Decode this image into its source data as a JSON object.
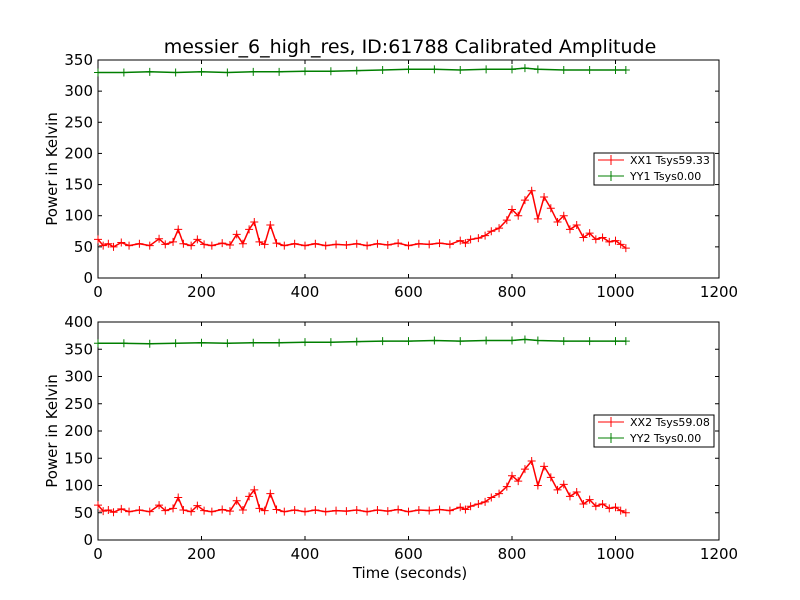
{
  "chart_data": [
    {
      "type": "line",
      "title": "messier_6_high_res, ID:61788 Calibrated Amplitude",
      "xlabel": "",
      "ylabel": "Power in Kelvin",
      "xlim": [
        0,
        1200
      ],
      "ylim": [
        0,
        350
      ],
      "xticks": [
        0,
        200,
        400,
        600,
        800,
        1000,
        1200
      ],
      "yticks": [
        0,
        50,
        100,
        150,
        200,
        250,
        300,
        350
      ],
      "legend_position": "center-right",
      "marker": "plus",
      "series": [
        {
          "name": "XX1 Tsys59.33",
          "color": "#ff0000",
          "x": [
            0,
            10,
            20,
            30,
            45,
            60,
            80,
            100,
            118,
            130,
            145,
            155,
            165,
            180,
            192,
            205,
            220,
            240,
            255,
            268,
            280,
            292,
            302,
            312,
            322,
            333,
            345,
            360,
            380,
            400,
            420,
            440,
            460,
            480,
            500,
            520,
            540,
            560,
            580,
            600,
            620,
            640,
            660,
            680,
            700,
            710,
            720,
            735,
            748,
            760,
            775,
            790,
            800,
            812,
            825,
            838,
            850,
            862,
            875,
            888,
            900,
            912,
            925,
            938,
            950,
            962,
            975,
            988,
            1000,
            1010,
            1020
          ],
          "y": [
            62,
            52,
            55,
            50,
            57,
            52,
            55,
            52,
            63,
            54,
            58,
            78,
            55,
            52,
            62,
            54,
            52,
            56,
            53,
            70,
            55,
            78,
            90,
            58,
            54,
            85,
            56,
            52,
            55,
            52,
            55,
            52,
            54,
            53,
            55,
            52,
            55,
            53,
            56,
            52,
            55,
            54,
            56,
            54,
            60,
            56,
            62,
            64,
            68,
            75,
            80,
            93,
            110,
            100,
            125,
            140,
            95,
            130,
            112,
            90,
            100,
            78,
            85,
            65,
            72,
            62,
            65,
            58,
            60,
            54,
            48
          ]
        },
        {
          "name": "YY1 Tsys0.00",
          "color": "#007f00",
          "x": [
            0,
            50,
            100,
            150,
            200,
            250,
            300,
            350,
            400,
            450,
            500,
            550,
            600,
            650,
            700,
            750,
            800,
            825,
            850,
            900,
            950,
            1000,
            1020
          ],
          "y": [
            330,
            330,
            331,
            330,
            331,
            330,
            331,
            331,
            332,
            332,
            333,
            334,
            335,
            335,
            334,
            335,
            335,
            337,
            335,
            334,
            334,
            334,
            334
          ]
        }
      ]
    },
    {
      "type": "line",
      "title": "",
      "xlabel": "Time (seconds)",
      "ylabel": "Power in Kelvin",
      "xlim": [
        0,
        1200
      ],
      "ylim": [
        0,
        400
      ],
      "xticks": [
        0,
        200,
        400,
        600,
        800,
        1000,
        1200
      ],
      "yticks": [
        0,
        50,
        100,
        150,
        200,
        250,
        300,
        350,
        400
      ],
      "legend_position": "center-right",
      "marker": "plus",
      "series": [
        {
          "name": "XX2 Tsys59.08",
          "color": "#ff0000",
          "x": [
            0,
            10,
            20,
            30,
            45,
            60,
            80,
            100,
            118,
            130,
            145,
            155,
            165,
            180,
            192,
            205,
            220,
            240,
            255,
            268,
            280,
            292,
            302,
            312,
            322,
            333,
            345,
            360,
            380,
            400,
            420,
            440,
            460,
            480,
            500,
            520,
            540,
            560,
            580,
            600,
            620,
            640,
            660,
            680,
            700,
            710,
            720,
            735,
            748,
            760,
            775,
            790,
            800,
            812,
            825,
            838,
            850,
            862,
            875,
            888,
            900,
            912,
            925,
            938,
            950,
            962,
            975,
            988,
            1000,
            1010,
            1020
          ],
          "y": [
            64,
            53,
            55,
            51,
            57,
            52,
            55,
            52,
            64,
            54,
            58,
            78,
            55,
            52,
            63,
            54,
            52,
            56,
            53,
            72,
            55,
            80,
            92,
            58,
            54,
            85,
            56,
            52,
            55,
            52,
            55,
            52,
            54,
            53,
            55,
            52,
            55,
            53,
            56,
            52,
            55,
            54,
            56,
            54,
            60,
            56,
            62,
            66,
            70,
            78,
            85,
            98,
            118,
            108,
            130,
            145,
            100,
            135,
            115,
            92,
            102,
            80,
            88,
            66,
            74,
            62,
            66,
            58,
            60,
            54,
            50
          ]
        },
        {
          "name": "YY2 Tsys0.00",
          "color": "#007f00",
          "x": [
            0,
            50,
            100,
            150,
            200,
            250,
            300,
            350,
            400,
            450,
            500,
            550,
            600,
            650,
            700,
            750,
            800,
            825,
            850,
            900,
            950,
            1000,
            1020
          ],
          "y": [
            361,
            361,
            360,
            361,
            362,
            361,
            362,
            362,
            363,
            363,
            364,
            365,
            365,
            366,
            365,
            366,
            366,
            368,
            366,
            365,
            365,
            365,
            365
          ]
        }
      ]
    }
  ]
}
